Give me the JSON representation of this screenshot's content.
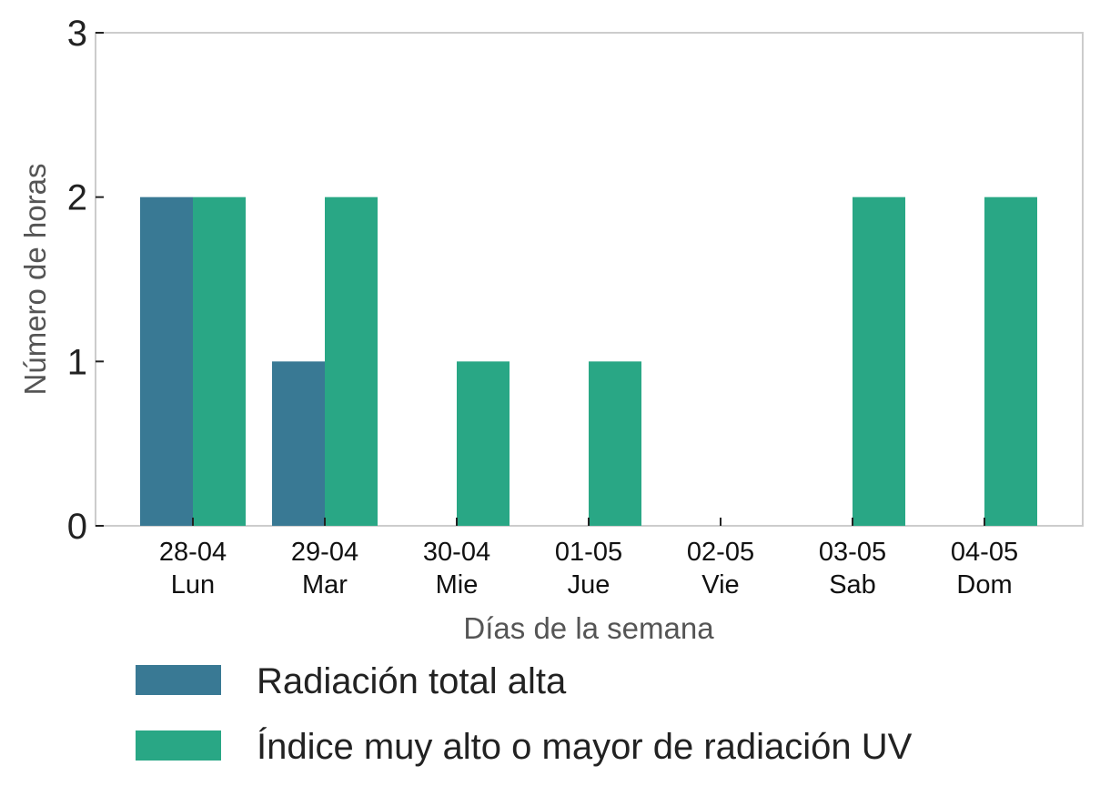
{
  "chart_data": {
    "type": "bar",
    "title": "",
    "xlabel": "Días de la semana",
    "ylabel": "Número de horas",
    "ylim": [
      0,
      3
    ],
    "yticks": [
      "0",
      "1",
      "2",
      "3"
    ],
    "categories": [
      {
        "date": "28-04",
        "day": "Lun"
      },
      {
        "date": "29-04",
        "day": "Mar"
      },
      {
        "date": "30-04",
        "day": "Mie"
      },
      {
        "date": "01-05",
        "day": "Jue"
      },
      {
        "date": "02-05",
        "day": "Vie"
      },
      {
        "date": "03-05",
        "day": "Sab"
      },
      {
        "date": "04-05",
        "day": "Dom"
      }
    ],
    "series": [
      {
        "name": "Radiación total alta",
        "color": "#397994",
        "values": [
          2,
          1,
          0,
          0,
          0,
          0,
          0
        ]
      },
      {
        "name": "Índice muy alto o mayor de radiación UV",
        "color": "#29a785",
        "values": [
          2,
          2,
          1,
          1,
          0,
          2,
          2
        ]
      }
    ],
    "grid": false,
    "legend_position": "bottom"
  }
}
